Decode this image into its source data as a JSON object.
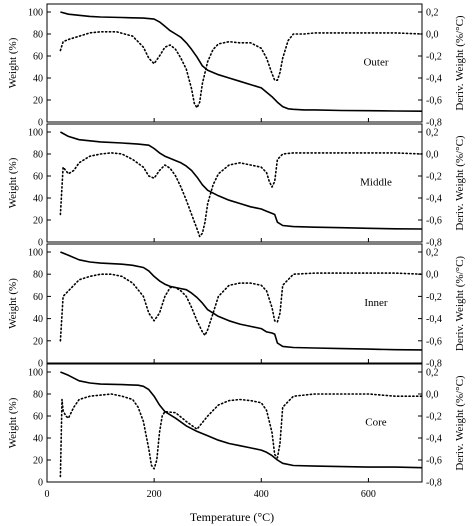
{
  "chart_data": [
    {
      "type": "line",
      "panel_label": "Outer",
      "xlabel": "Temperature (°C)",
      "ylabel_left": "Weight (%)",
      "ylabel_right": "Deriv. Weight (%/°C)",
      "xlim": [
        0,
        700
      ],
      "ylim_left": [
        0,
        100
      ],
      "ylim_right": [
        -0.8,
        0.2
      ],
      "series": [
        {
          "axis": "left",
          "style": "solid",
          "x": [
            25,
            40,
            60,
            80,
            100,
            140,
            180,
            190,
            200,
            210,
            220,
            230,
            240,
            250,
            260,
            270,
            280,
            290,
            300,
            320,
            340,
            360,
            380,
            400,
            410,
            420,
            430,
            440,
            450,
            460,
            480,
            500,
            550,
            600,
            650,
            700
          ],
          "y": [
            100,
            98,
            97,
            96,
            95.5,
            95,
            94.5,
            94,
            93.5,
            91,
            87,
            83,
            80,
            77,
            72,
            66,
            59,
            51,
            47,
            43,
            40,
            37,
            34,
            31,
            27,
            23,
            18,
            14,
            12,
            11.5,
            11,
            11,
            10.5,
            10.3,
            10,
            9.8
          ]
        },
        {
          "axis": "right",
          "style": "dotted",
          "x": [
            25,
            30,
            40,
            60,
            80,
            100,
            130,
            160,
            180,
            190,
            200,
            210,
            220,
            230,
            240,
            250,
            260,
            270,
            275,
            280,
            285,
            290,
            300,
            310,
            320,
            340,
            360,
            380,
            400,
            410,
            420,
            425,
            430,
            435,
            440,
            450,
            460,
            480,
            500,
            550,
            600,
            650,
            700
          ],
          "y": [
            -0.15,
            -0.07,
            -0.05,
            -0.02,
            0.01,
            0.02,
            0.02,
            -0.02,
            -0.12,
            -0.22,
            -0.27,
            -0.2,
            -0.12,
            -0.1,
            -0.14,
            -0.22,
            -0.32,
            -0.5,
            -0.63,
            -0.67,
            -0.62,
            -0.45,
            -0.25,
            -0.14,
            -0.09,
            -0.07,
            -0.08,
            -0.08,
            -0.13,
            -0.22,
            -0.36,
            -0.42,
            -0.42,
            -0.35,
            -0.22,
            -0.06,
            0.0,
            0.0,
            0.01,
            0.01,
            0.01,
            0.01,
            0.0
          ]
        }
      ]
    },
    {
      "type": "line",
      "panel_label": "Middle",
      "xlabel": "Temperature (°C)",
      "ylabel_left": "Weight (%)",
      "ylabel_right": "Deriv. Weight (%/°C)",
      "xlim": [
        0,
        700
      ],
      "ylim_left": [
        0,
        100
      ],
      "ylim_right": [
        -0.8,
        0.2
      ],
      "series": [
        {
          "axis": "left",
          "style": "solid",
          "x": [
            25,
            40,
            60,
            80,
            100,
            140,
            170,
            190,
            200,
            210,
            220,
            230,
            240,
            250,
            260,
            270,
            280,
            290,
            300,
            320,
            340,
            360,
            380,
            400,
            410,
            420,
            425,
            430,
            440,
            460,
            500,
            550,
            600,
            650,
            700
          ],
          "y": [
            100,
            96,
            93,
            92,
            91,
            90,
            89,
            88,
            85,
            81,
            78,
            76,
            74,
            72,
            69,
            65,
            59,
            52,
            47,
            42,
            38,
            35,
            32,
            30,
            28,
            26,
            25,
            18,
            15,
            14,
            13.5,
            13,
            12.5,
            12,
            11.8
          ]
        },
        {
          "axis": "right",
          "style": "dotted",
          "x": [
            25,
            30,
            40,
            50,
            60,
            80,
            100,
            120,
            140,
            160,
            180,
            190,
            200,
            210,
            220,
            230,
            240,
            250,
            260,
            270,
            280,
            285,
            290,
            295,
            300,
            310,
            320,
            340,
            360,
            380,
            400,
            410,
            415,
            420,
            425,
            430,
            440,
            460,
            500,
            550,
            600,
            650,
            700
          ],
          "y": [
            -0.55,
            -0.12,
            -0.18,
            -0.15,
            -0.08,
            -0.02,
            0.0,
            0.01,
            0.0,
            -0.05,
            -0.12,
            -0.2,
            -0.22,
            -0.15,
            -0.1,
            -0.13,
            -0.2,
            -0.3,
            -0.42,
            -0.55,
            -0.68,
            -0.75,
            -0.72,
            -0.62,
            -0.45,
            -0.28,
            -0.18,
            -0.1,
            -0.08,
            -0.1,
            -0.12,
            -0.17,
            -0.25,
            -0.3,
            -0.25,
            -0.05,
            0.0,
            0.01,
            0.01,
            0.01,
            0.01,
            0.01,
            0.0
          ]
        }
      ]
    },
    {
      "type": "line",
      "panel_label": "Inner",
      "xlabel": "Temperature (°C)",
      "ylabel_left": "Weight (%)",
      "ylabel_right": "Deriv. Weight (%/°C)",
      "xlim": [
        0,
        700
      ],
      "ylim_left": [
        0,
        100
      ],
      "ylim_right": [
        -0.8,
        0.2
      ],
      "series": [
        {
          "axis": "left",
          "style": "solid",
          "x": [
            25,
            40,
            60,
            80,
            100,
            140,
            160,
            180,
            190,
            200,
            210,
            220,
            230,
            240,
            250,
            260,
            270,
            280,
            290,
            300,
            320,
            340,
            360,
            380,
            400,
            410,
            420,
            425,
            430,
            440,
            460,
            500,
            550,
            600,
            650,
            700
          ],
          "y": [
            100,
            97,
            93,
            91,
            90,
            89,
            88,
            86,
            83,
            78,
            74,
            71,
            69,
            68,
            67,
            66,
            63,
            59,
            54,
            48,
            42,
            38,
            35,
            33,
            31,
            28,
            27,
            26,
            18,
            15,
            14,
            13.5,
            13,
            12.5,
            12,
            11.8
          ]
        },
        {
          "axis": "right",
          "style": "dotted",
          "x": [
            25,
            30,
            40,
            50,
            60,
            80,
            100,
            120,
            140,
            160,
            180,
            190,
            200,
            210,
            220,
            230,
            240,
            250,
            260,
            270,
            280,
            290,
            295,
            300,
            310,
            320,
            340,
            360,
            380,
            400,
            410,
            420,
            425,
            430,
            435,
            440,
            460,
            500,
            550,
            600,
            650,
            700
          ],
          "y": [
            -0.6,
            -0.2,
            -0.15,
            -0.1,
            -0.05,
            -0.02,
            0.0,
            0.0,
            -0.02,
            -0.08,
            -0.2,
            -0.35,
            -0.42,
            -0.35,
            -0.2,
            -0.12,
            -0.12,
            -0.15,
            -0.2,
            -0.3,
            -0.42,
            -0.52,
            -0.55,
            -0.5,
            -0.35,
            -0.2,
            -0.1,
            -0.08,
            -0.08,
            -0.1,
            -0.15,
            -0.3,
            -0.42,
            -0.43,
            -0.35,
            -0.1,
            0.0,
            0.01,
            0.01,
            0.01,
            0.01,
            0.0
          ]
        }
      ]
    },
    {
      "type": "line",
      "panel_label": "Core",
      "xlabel": "Temperature (°C)",
      "ylabel_left": "Weight (%)",
      "ylabel_right": "Deriv. Weight (%/°C)",
      "xlim": [
        0,
        700
      ],
      "ylim_left": [
        0,
        100
      ],
      "ylim_right": [
        -0.8,
        0.2
      ],
      "series": [
        {
          "axis": "left",
          "style": "solid",
          "x": [
            25,
            40,
            60,
            80,
            100,
            140,
            170,
            180,
            190,
            200,
            210,
            220,
            240,
            260,
            280,
            300,
            320,
            340,
            360,
            380,
            400,
            410,
            420,
            430,
            440,
            460,
            500,
            550,
            600,
            650,
            700
          ],
          "y": [
            100,
            97,
            92,
            90,
            89,
            88.5,
            88,
            87,
            84,
            78,
            70,
            64,
            58,
            51,
            46,
            42,
            38,
            35,
            33,
            31,
            29,
            27,
            24,
            20,
            17,
            15,
            14.5,
            14,
            13.5,
            13.5,
            13
          ]
        },
        {
          "axis": "right",
          "style": "dotted",
          "x": [
            25,
            28,
            30,
            35,
            40,
            50,
            60,
            80,
            100,
            120,
            140,
            160,
            170,
            180,
            190,
            195,
            200,
            205,
            210,
            215,
            220,
            240,
            260,
            280,
            300,
            320,
            340,
            360,
            380,
            400,
            410,
            420,
            425,
            430,
            435,
            440,
            460,
            500,
            550,
            600,
            650,
            700
          ],
          "y": [
            -0.75,
            -0.05,
            -0.15,
            -0.2,
            -0.22,
            -0.12,
            -0.05,
            -0.02,
            -0.01,
            0.0,
            -0.02,
            -0.05,
            -0.12,
            -0.25,
            -0.5,
            -0.65,
            -0.68,
            -0.6,
            -0.35,
            -0.2,
            -0.16,
            -0.17,
            -0.25,
            -0.32,
            -0.2,
            -0.1,
            -0.06,
            -0.05,
            -0.06,
            -0.08,
            -0.15,
            -0.35,
            -0.55,
            -0.58,
            -0.45,
            -0.12,
            -0.02,
            0.0,
            0.0,
            0.0,
            -0.02,
            -0.02
          ]
        }
      ]
    }
  ],
  "axes": {
    "left_ticks": [
      "0",
      "20",
      "40",
      "60",
      "80",
      "100"
    ],
    "right_ticks": [
      "-0,8",
      "-0,6",
      "-0,4",
      "-0,2",
      "0,0",
      "0,2"
    ],
    "x_ticks": [
      "0",
      "200",
      "400",
      "600"
    ],
    "xlabel": "Temperature (°C)"
  }
}
